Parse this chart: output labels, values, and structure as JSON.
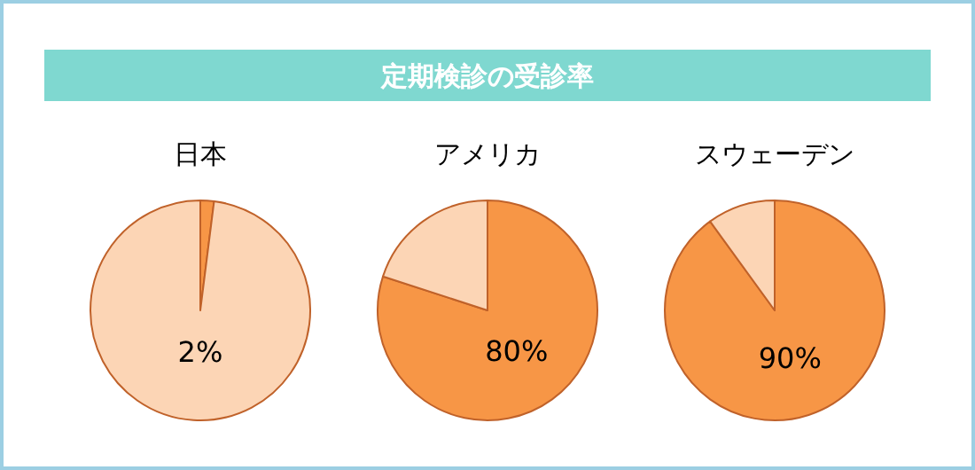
{
  "chart_data": [
    {
      "type": "other",
      "title": "定期検診の受診率",
      "color": "#7fd8d0"
    },
    {
      "type": "pie",
      "title": "日本",
      "categories": [
        null,
        null
      ],
      "values": [
        2,
        98
      ],
      "colors": [
        "#f79646",
        "#fcd5b5"
      ],
      "annotations": [
        "2%"
      ]
    },
    {
      "type": "pie",
      "title": "アメリカ",
      "categories": [
        null,
        null
      ],
      "values": [
        80,
        20
      ],
      "colors": [
        "#f79646",
        "#fcd5b5"
      ],
      "value_labels": [
        "80%",
        null
      ]
    },
    {
      "type": "pie",
      "title": "スウェーデン",
      "categories": [
        null,
        null
      ],
      "values": [
        90,
        10
      ],
      "colors": [
        "#f79646",
        "#fcd5b5"
      ],
      "value_labels": [
        "90%",
        null
      ]
    }
  ]
}
